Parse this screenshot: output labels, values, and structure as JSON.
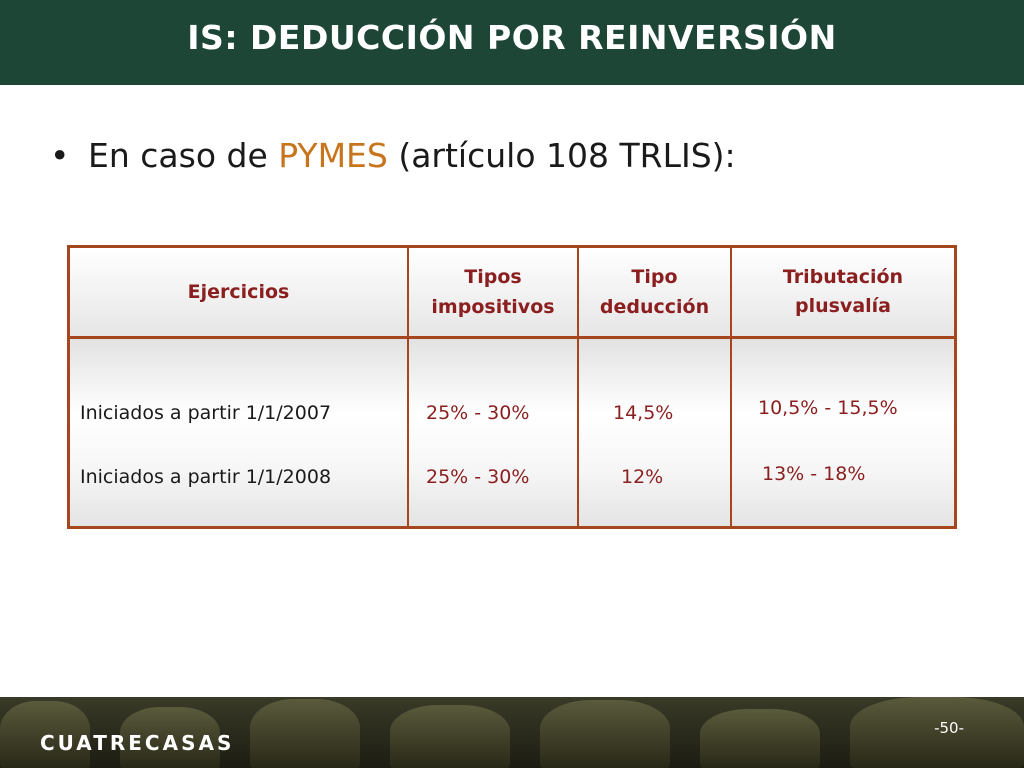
{
  "slide": {
    "title": "IS: DEDUCCIÓN POR REINVERSIÓN",
    "bullet": {
      "prefix": "En caso de ",
      "highlight": "PYMES",
      "suffix": " (artículo 108 TRLIS):"
    }
  },
  "table": {
    "headers": [
      {
        "line1": "Ejercicios",
        "line2": ""
      },
      {
        "line1": "Tipos",
        "line2": "impositivos"
      },
      {
        "line1": "Tipo",
        "line2": "deducción"
      },
      {
        "line1": "Tributación",
        "line2": "plusvalía"
      }
    ],
    "rows": [
      {
        "ejercicio": "Iniciados a partir 1/1/2007",
        "tipos": "25% - 30%",
        "deduccion": "14,5%",
        "plusvalia": "10,5% - 15,5%"
      },
      {
        "ejercicio": "Iniciados a partir 1/1/2008",
        "tipos": "25% - 30%",
        "deduccion": "12%",
        "plusvalia": "13% - 18%"
      }
    ]
  },
  "footer": {
    "logo": "CUATRECASAS",
    "page": "-50-"
  },
  "colors": {
    "title_bg": "#1e4637",
    "accent": "#c8741c",
    "table_border": "#a5461e",
    "table_text": "#8b1e1e"
  }
}
